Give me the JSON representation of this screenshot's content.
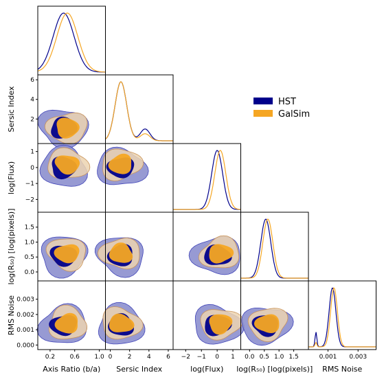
{
  "chart_data": {
    "type": "corner",
    "parameters": [
      "Axis Ratio (b/a)",
      "Sersic Index",
      "log(Flux)",
      "log(R50) [log(pixels)]",
      "RMS Noise"
    ],
    "axis_labels": {
      "x": [
        "Axis Ratio (b/a)",
        "Sersic Index",
        "log(Flux)",
        "log(R₅₀) [log(pixels)]",
        "RMS Noise"
      ],
      "y": [
        "Sersic Index",
        "log(Flux)",
        "log(R₅₀) [log(pixels)]",
        "RMS Noise"
      ]
    },
    "ranges": [
      [
        0.0,
        1.1
      ],
      [
        -0.5,
        6.5
      ],
      [
        -2.8,
        1.5
      ],
      [
        -0.3,
        2.0
      ],
      [
        -0.0003,
        0.0042
      ]
    ],
    "x_ticks": [
      [
        "0.2",
        "0.6",
        "1.0"
      ],
      [
        "0",
        "2",
        "4",
        "6"
      ],
      [
        "−2",
        "−1",
        "0",
        "1"
      ],
      [
        "0.0",
        "0.5",
        "1.0",
        "1.5"
      ],
      [
        "0.001",
        "0.003"
      ]
    ],
    "x_tick_values": [
      [
        0.2,
        0.6,
        1.0
      ],
      [
        0,
        2,
        4,
        6
      ],
      [
        -2,
        -1,
        0,
        1
      ],
      [
        0.0,
        0.5,
        1.0,
        1.5
      ],
      [
        0.001,
        0.003
      ]
    ],
    "y_ticks": [
      [
        "2",
        "4",
        "6"
      ],
      [
        "−2",
        "−1",
        "0",
        "1"
      ],
      [
        "0.0",
        "0.5",
        "1.0",
        "1.5"
      ],
      [
        "0.000",
        "0.001",
        "0.002",
        "0.003"
      ]
    ],
    "y_tick_values": [
      [
        2,
        4,
        6
      ],
      [
        -2,
        -1,
        0,
        1
      ],
      [
        0.0,
        0.5,
        1.0,
        1.5
      ],
      [
        0.0,
        0.001,
        0.002,
        0.003
      ]
    ],
    "series": [
      {
        "name": "HST",
        "color": "#00008b",
        "outer_fill": "#8c8fce",
        "outer_stroke": "#4044b8",
        "peaks": [
          0.42,
          1.1,
          0.0,
          0.55,
          0.0013
        ]
      },
      {
        "name": "GalSim",
        "color": "#f5a623",
        "outer_fill": "#ecd3b0",
        "outer_stroke": "#c8935a",
        "peaks": [
          0.48,
          1.1,
          0.2,
          0.62,
          0.0014
        ]
      }
    ],
    "legend": {
      "position": "right",
      "labels": [
        "HST",
        "GalSim"
      ]
    },
    "grid": false
  }
}
